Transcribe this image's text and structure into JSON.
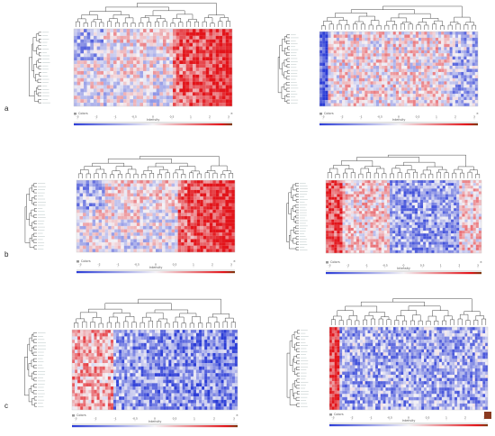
{
  "figure": {
    "panel_labels": [
      "a",
      "b",
      "c"
    ]
  },
  "colors": {
    "low": "#2b3cd6",
    "mid": "#f4f2f6",
    "high": "#e2141a",
    "extreme": "#7a3a10",
    "dendrogram": "#333333"
  },
  "chart_data": [
    {
      "type": "heatmap",
      "panel": "a",
      "position": "left",
      "color_scale": {
        "title": "Intensity",
        "legend_label": "Colors",
        "ticks": [
          "-3",
          "-2",
          "-1",
          "-0.5",
          "0",
          "0.5",
          "1",
          "2",
          "3"
        ]
      },
      "rows": 22,
      "cols": 48,
      "pattern": "high-right"
    },
    {
      "type": "heatmap",
      "panel": "a",
      "position": "right",
      "color_scale": {
        "title": "Intensity",
        "legend_label": "Colors",
        "ticks": [
          "-3",
          "-2",
          "-1",
          "-0.5",
          "0",
          "0.5",
          "1",
          "2",
          "3"
        ]
      },
      "rows": 24,
      "cols": 56,
      "pattern": "low-left-mixed"
    },
    {
      "type": "heatmap",
      "panel": "b",
      "position": "left",
      "color_scale": {
        "title": "Intensity",
        "legend_label": "Colors",
        "ticks": [
          "-3",
          "-2",
          "-1",
          "-0.5",
          "0",
          "0.5",
          "1",
          "2",
          "3"
        ]
      },
      "rows": 22,
      "cols": 50,
      "pattern": "high-right"
    },
    {
      "type": "heatmap",
      "panel": "b",
      "position": "right",
      "color_scale": {
        "title": "Intensity",
        "legend_label": "Colors",
        "ticks": [
          "-3",
          "-2",
          "-1",
          "-0.5",
          "0",
          "0.5",
          "1",
          "2",
          "3"
        ]
      },
      "rows": 26,
      "cols": 56,
      "pattern": "high-left-low-center"
    },
    {
      "type": "heatmap",
      "panel": "c",
      "position": "left",
      "color_scale": {
        "title": "Intensity",
        "legend_label": "Colors",
        "ticks": [
          "-3",
          "-2",
          "-1",
          "-0.5",
          "0",
          "0.5",
          "1",
          "2",
          "3"
        ]
      },
      "rows": 24,
      "cols": 60,
      "pattern": "high-left-low-right"
    },
    {
      "type": "heatmap",
      "panel": "c",
      "position": "right",
      "color_scale": {
        "title": "Intensity",
        "legend_label": "Colors",
        "ticks": [
          "-3",
          "-2",
          "-1",
          "-0.5",
          "0",
          "0.5",
          "1",
          "2",
          "3"
        ]
      },
      "rows": 26,
      "cols": 62,
      "pattern": "high-left-strip-low"
    }
  ]
}
